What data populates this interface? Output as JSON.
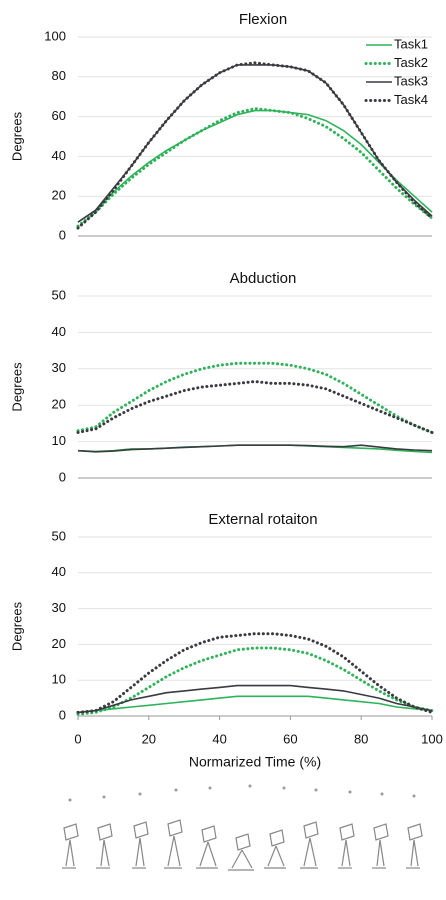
{
  "chart_data": [
    {
      "type": "line",
      "title": "Flexion",
      "y_label": "Degrees",
      "x": [
        0,
        5,
        10,
        15,
        20,
        25,
        30,
        35,
        40,
        45,
        50,
        55,
        60,
        65,
        70,
        75,
        80,
        85,
        90,
        95,
        100
      ],
      "xlim": [
        0,
        100
      ],
      "ylim": [
        0,
        100
      ],
      "yticks": [
        0,
        20,
        40,
        60,
        80,
        100
      ],
      "grid": true,
      "legend": "upper right",
      "series": [
        {
          "name": "Task1",
          "color": "#2fb35a",
          "style": "solid",
          "values": [
            7,
            13,
            22,
            30,
            37,
            43,
            48,
            53,
            57,
            61,
            63,
            63,
            62,
            61,
            58,
            53,
            46,
            37,
            28,
            20,
            12
          ]
        },
        {
          "name": "Task2",
          "color": "#2fb35a",
          "style": "dotted",
          "values": [
            5,
            12,
            21,
            29,
            36,
            42,
            48,
            53,
            58,
            62,
            64,
            63,
            62,
            59,
            55,
            49,
            42,
            33,
            24,
            16,
            9
          ]
        },
        {
          "name": "Task3",
          "color": "#3a3a40",
          "style": "solid",
          "values": [
            7,
            13,
            24,
            35,
            47,
            58,
            68,
            76,
            82,
            86,
            86,
            86,
            85,
            83,
            77,
            66,
            52,
            38,
            27,
            18,
            10
          ]
        },
        {
          "name": "Task4",
          "color": "#3a3a40",
          "style": "dotted",
          "values": [
            4,
            12,
            23,
            35,
            47,
            58,
            68,
            76,
            82,
            86,
            87,
            86,
            85,
            83,
            77,
            66,
            52,
            38,
            27,
            17,
            9
          ]
        }
      ]
    },
    {
      "type": "line",
      "title": "Abduction",
      "y_label": "Degrees",
      "x": [
        0,
        5,
        10,
        15,
        20,
        25,
        30,
        35,
        40,
        45,
        50,
        55,
        60,
        65,
        70,
        75,
        80,
        85,
        90,
        95,
        100
      ],
      "xlim": [
        0,
        100
      ],
      "ylim": [
        0,
        50
      ],
      "yticks": [
        0,
        10,
        20,
        30,
        40,
        50
      ],
      "grid": true,
      "series": [
        {
          "name": "Task1",
          "color": "#2fb35a",
          "style": "solid",
          "values": [
            7.5,
            7.3,
            7.5,
            8,
            8,
            8.2,
            8.5,
            8.6,
            8.8,
            9,
            9,
            9,
            9,
            8.8,
            8.6,
            8.4,
            8.2,
            8,
            7.6,
            7.3,
            7
          ]
        },
        {
          "name": "Task2",
          "color": "#2fb35a",
          "style": "dotted",
          "values": [
            13,
            14,
            18,
            21,
            24,
            26.5,
            28.5,
            30,
            31,
            31.5,
            31.5,
            31.5,
            31,
            30,
            28.5,
            26,
            23,
            20,
            17,
            14.5,
            12.5
          ]
        },
        {
          "name": "Task3",
          "color": "#3a3a40",
          "style": "solid",
          "values": [
            7.5,
            7.2,
            7.4,
            7.8,
            8,
            8.2,
            8.4,
            8.6,
            8.8,
            9,
            9,
            9,
            9,
            8.9,
            8.7,
            8.6,
            9,
            8.5,
            8,
            7.7,
            7.5
          ]
        },
        {
          "name": "Task4",
          "color": "#3a3a40",
          "style": "dotted",
          "values": [
            12.5,
            13.5,
            16.5,
            19,
            21,
            22.5,
            24,
            25,
            25.5,
            26,
            26.5,
            26,
            26,
            25.5,
            24.5,
            22.5,
            20.5,
            18.5,
            16.5,
            14.5,
            12.5
          ]
        }
      ]
    },
    {
      "type": "line",
      "title": "External rotaiton",
      "y_label": "Degrees",
      "x_label": "Normarized Time (%)",
      "x": [
        0,
        5,
        10,
        15,
        20,
        25,
        30,
        35,
        40,
        45,
        50,
        55,
        60,
        65,
        70,
        75,
        80,
        85,
        90,
        95,
        100
      ],
      "xlim": [
        0,
        100
      ],
      "xticks": [
        0,
        20,
        40,
        60,
        80,
        100
      ],
      "ylim": [
        0,
        50
      ],
      "yticks": [
        0,
        10,
        20,
        30,
        40,
        50
      ],
      "grid": true,
      "series": [
        {
          "name": "Task1",
          "color": "#2fb35a",
          "style": "solid",
          "values": [
            1,
            1.5,
            2,
            2.5,
            3,
            3.5,
            4,
            4.5,
            5,
            5.5,
            5.5,
            5.5,
            5.5,
            5.5,
            5,
            4.5,
            4,
            3.5,
            2.5,
            2,
            1.5
          ]
        },
        {
          "name": "Task2",
          "color": "#2fb35a",
          "style": "dotted",
          "values": [
            0.5,
            1,
            2.5,
            5,
            8,
            11,
            13.5,
            15.5,
            17,
            18.5,
            19,
            19,
            18.5,
            17.5,
            15.5,
            13,
            10,
            7,
            4.5,
            2.5,
            1.5
          ]
        },
        {
          "name": "Task3",
          "color": "#3a3a40",
          "style": "solid",
          "values": [
            1,
            1.5,
            3,
            4.5,
            5.5,
            6.5,
            7,
            7.5,
            8,
            8.5,
            8.5,
            8.5,
            8.5,
            8,
            7.5,
            7,
            6,
            5,
            3.5,
            2.5,
            1.5
          ]
        },
        {
          "name": "Task4",
          "color": "#3a3a40",
          "style": "dotted",
          "values": [
            1,
            1.5,
            4,
            8,
            12,
            15.5,
            18.5,
            20.5,
            22,
            22.5,
            23,
            23,
            22.5,
            21.5,
            19.5,
            16.5,
            12.5,
            8.5,
            5,
            2.5,
            1
          ]
        }
      ]
    }
  ]
}
